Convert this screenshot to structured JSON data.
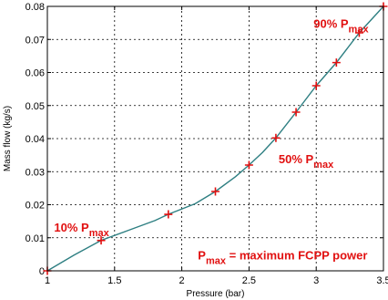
{
  "chart_data": {
    "type": "line",
    "xlabel": "Pressure (bar)",
    "ylabel": "Mass flow (kg/s)",
    "xlim": [
      1,
      3.5
    ],
    "ylim": [
      0,
      0.08
    ],
    "xticks": [
      "1",
      "1.5",
      "2",
      "2.5",
      "3",
      "3.5"
    ],
    "yticks": [
      "0",
      "0.01",
      "0.02",
      "0.03",
      "0.04",
      "0.05",
      "0.06",
      "0.07",
      "0.08"
    ],
    "grid": true,
    "line_color": "#2e7f82",
    "marker_color": "#e11010",
    "curve": {
      "x": [
        1.0,
        1.2,
        1.4,
        1.6,
        1.8,
        1.9,
        2.1,
        2.25,
        2.4,
        2.5,
        2.6,
        2.7,
        2.85,
        3.0,
        3.15,
        3.32,
        3.5
      ],
      "y": [
        0.0,
        0.0048,
        0.0092,
        0.0122,
        0.0152,
        0.0171,
        0.0203,
        0.024,
        0.0285,
        0.032,
        0.0358,
        0.0402,
        0.048,
        0.056,
        0.063,
        0.072,
        0.08
      ]
    },
    "markers": {
      "x": [
        1.0,
        1.4,
        1.9,
        2.25,
        2.5,
        2.7,
        2.85,
        3.0,
        3.15,
        3.32,
        3.5
      ],
      "y": [
        0.0,
        0.0092,
        0.0171,
        0.024,
        0.032,
        0.0402,
        0.048,
        0.056,
        0.063,
        0.072,
        0.08
      ]
    },
    "annotations": [
      {
        "main": "10% P",
        "sub": "max",
        "tail": "",
        "x": 1.05,
        "y": 0.0118
      },
      {
        "main": "50% P",
        "sub": "max",
        "tail": "",
        "x": 2.72,
        "y": 0.0325
      },
      {
        "main": "90% P",
        "sub": "max",
        "tail": "",
        "x": 2.98,
        "y": 0.0735
      },
      {
        "main": "P",
        "sub": "max",
        "tail": " = maximum FCPP power",
        "x": 2.12,
        "y": 0.0035
      }
    ]
  }
}
